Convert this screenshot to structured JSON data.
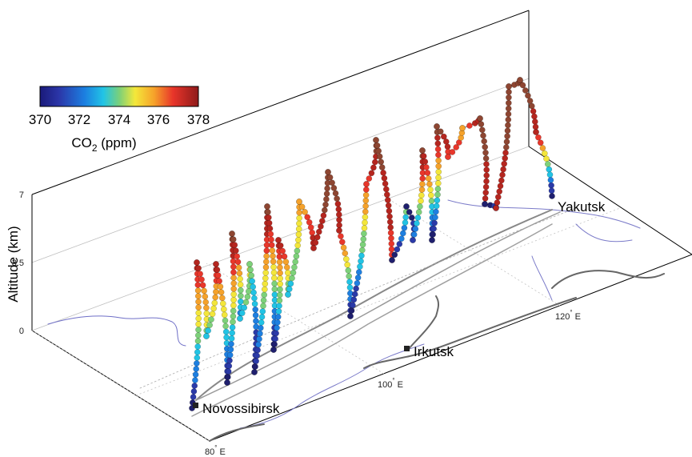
{
  "chart_data": {
    "type": "scatter",
    "subtype": "3d-flight-profiles",
    "title": "",
    "zlabel": "Altitude (km)",
    "z_ticks": [
      "0",
      "3.5",
      "7"
    ],
    "zlim": [
      0,
      7
    ],
    "colorbar": {
      "title_main": "CO",
      "title_sub": "2",
      "title_unit": " (ppm)",
      "ticks": [
        "370",
        "372",
        "374",
        "376",
        "378"
      ],
      "range": [
        370,
        378
      ],
      "colormap": "jet"
    },
    "longitude_labels": [
      {
        "value": "80",
        "deg": "°",
        "suffix": " E"
      },
      {
        "value": "100",
        "deg": "°",
        "suffix": " E"
      },
      {
        "value": "120",
        "deg": "°",
        "suffix": " E"
      }
    ],
    "cities": [
      {
        "name": "Novossibirsk"
      },
      {
        "name": "Irkutsk"
      },
      {
        "name": "Yakutsk"
      }
    ],
    "grid": true
  }
}
